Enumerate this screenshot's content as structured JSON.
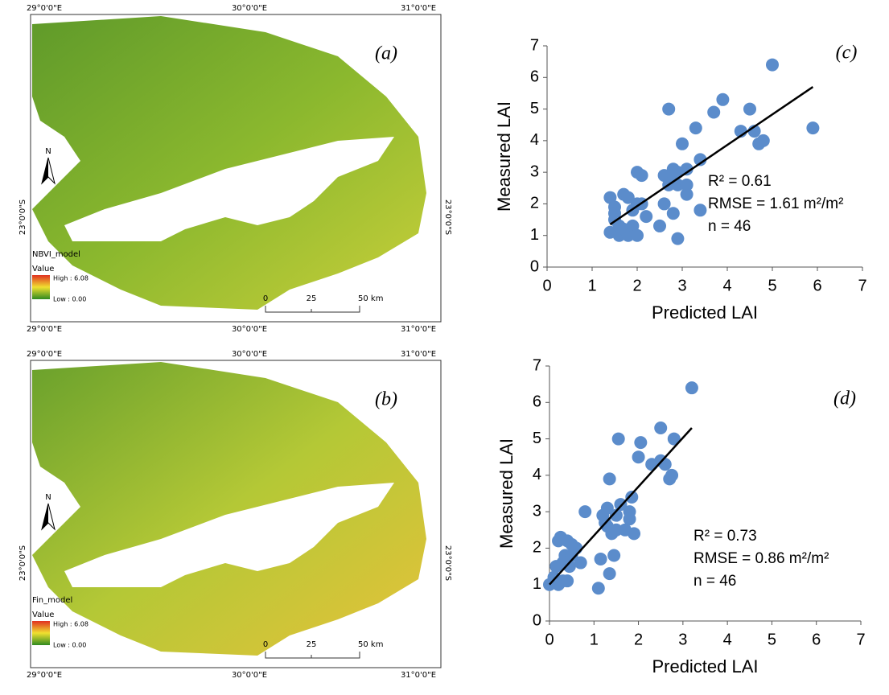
{
  "maps": [
    {
      "panel": "(a)",
      "model": "NBVI_model",
      "legend_title": "Value",
      "high": "High : 6.08",
      "low": "Low : 0.00",
      "lon_labels": [
        "29°0'0\"E",
        "30°0'0\"E",
        "31°0'0\"E"
      ],
      "lat_label": "23°0'0\"S",
      "north": "N",
      "scale": [
        "0",
        "25",
        "50 km"
      ]
    },
    {
      "panel": "(b)",
      "model": "Fin_model",
      "legend_title": "Value",
      "high": "High : 6.08",
      "low": "Low : 0.00",
      "lon_labels": [
        "29°0'0\"E",
        "30°0'0\"E",
        "31°0'0\"E"
      ],
      "lat_label": "23°0'0\"S",
      "north": "N",
      "scale": [
        "0",
        "25",
        "50 km"
      ]
    }
  ],
  "chart_data": [
    {
      "type": "scatter",
      "panel_label": "(c)",
      "x_label": "Predicted LAI",
      "y_label": "Measured LAI",
      "color": "#5b8ccb",
      "xlim": [
        0,
        7
      ],
      "ylim": [
        0,
        7
      ],
      "xticks": [
        0,
        1,
        2,
        3,
        4,
        5,
        6,
        7
      ],
      "yticks": [
        0,
        1,
        2,
        3,
        4,
        5,
        6,
        7
      ],
      "x": [
        1.4,
        1.4,
        1.5,
        1.5,
        1.6,
        1.6,
        1.7,
        1.7,
        1.8,
        1.8,
        1.9,
        1.9,
        2.0,
        2.0,
        2.1,
        2.1,
        2.2,
        2.5,
        2.6,
        2.7,
        2.7,
        2.8,
        2.8,
        2.8,
        2.9,
        2.9,
        2.9,
        3.0,
        3.1,
        3.1,
        3.1,
        3.3,
        3.4,
        3.4,
        3.7,
        3.9,
        4.3,
        4.5,
        4.6,
        4.7,
        4.8,
        5.0,
        5.9,
        2.0,
        1.5,
        2.6
      ],
      "values": [
        2.2,
        1.1,
        1.9,
        1.7,
        1.0,
        1.3,
        2.3,
        1.2,
        2.2,
        1.0,
        1.8,
        1.3,
        1.0,
        3.0,
        2.9,
        2.0,
        1.6,
        1.3,
        2.9,
        5.0,
        2.6,
        3.1,
        1.7,
        2.9,
        0.9,
        2.6,
        3.0,
        3.9,
        2.3,
        3.1,
        2.6,
        4.4,
        3.4,
        1.8,
        4.9,
        5.3,
        4.3,
        5.0,
        4.3,
        3.9,
        4.0,
        6.4,
        4.4,
        2.0,
        1.5,
        2.0
      ],
      "trendline": {
        "x": [
          1.4,
          5.9
        ],
        "y": [
          1.35,
          5.7
        ]
      },
      "annotations": [
        "R² = 0.61",
        "RMSE = 1.61 m²/m²",
        "n = 46"
      ]
    },
    {
      "type": "scatter",
      "panel_label": "(d)",
      "x_label": "Predicted LAI",
      "y_label": "Measured LAI",
      "color": "#5b8ccb",
      "xlim": [
        0,
        7
      ],
      "ylim": [
        0,
        7
      ],
      "xticks": [
        0,
        1,
        2,
        3,
        4,
        5,
        6,
        7
      ],
      "yticks": [
        0,
        1,
        2,
        3,
        4,
        5,
        6,
        7
      ],
      "x": [
        0,
        0.1,
        0.15,
        0.2,
        0.2,
        0.25,
        0.3,
        0.3,
        0.35,
        0.4,
        0.4,
        0.45,
        0.5,
        0.5,
        0.6,
        0.7,
        0.8,
        1.1,
        1.15,
        1.2,
        1.3,
        1.3,
        1.35,
        1.35,
        1.4,
        1.45,
        1.5,
        1.5,
        1.55,
        1.6,
        1.7,
        1.8,
        1.8,
        1.85,
        1.9,
        2.0,
        2.05,
        2.3,
        2.5,
        2.5,
        2.6,
        2.7,
        2.75,
        2.8,
        3.2,
        1.25
      ],
      "values": [
        1.0,
        1.2,
        1.5,
        1.0,
        2.2,
        2.3,
        1.6,
        1.1,
        1.8,
        2.2,
        1.1,
        1.5,
        2.1,
        1.8,
        2.0,
        1.6,
        3.0,
        0.9,
        1.7,
        2.9,
        3.1,
        2.6,
        3.9,
        1.3,
        2.4,
        1.8,
        2.5,
        2.9,
        5.0,
        3.2,
        2.5,
        3.0,
        2.8,
        3.4,
        2.4,
        4.5,
        4.9,
        4.3,
        5.3,
        4.4,
        4.3,
        3.9,
        4.0,
        5.0,
        6.4,
        2.7
      ],
      "trendline": {
        "x": [
          0,
          3.2
        ],
        "y": [
          1.0,
          5.3
        ]
      },
      "annotations": [
        "R² = 0.73",
        "RMSE = 0.86 m²/m²",
        "n = 46"
      ]
    }
  ]
}
